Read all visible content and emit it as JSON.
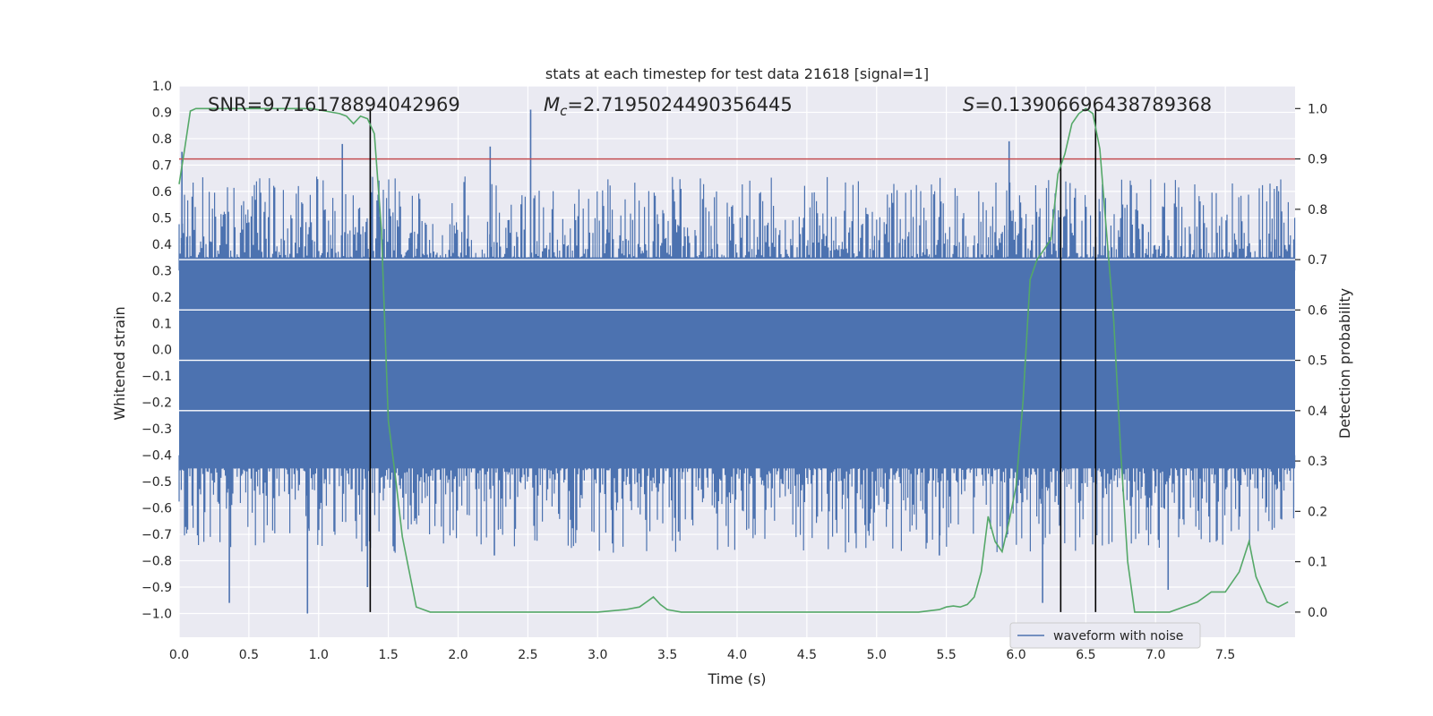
{
  "chart_data": {
    "type": "line",
    "title": "stats at each timestep for test data 21618 [signal=1]",
    "xlabel": "Time (s)",
    "ylabel": "Whitened strain",
    "ylabel_right": "Detection probability",
    "xlim": [
      0.0,
      8.0
    ],
    "ylim": [
      -1.09,
      1.0
    ],
    "ylim_right": [
      -0.05,
      1.045
    ],
    "x_ticks": [
      0.0,
      0.5,
      1.0,
      1.5,
      2.0,
      2.5,
      3.0,
      3.5,
      4.0,
      4.5,
      5.0,
      5.5,
      6.0,
      6.5,
      7.0,
      7.5
    ],
    "x_tick_labels": [
      "0.0",
      "0.5",
      "1.0",
      "1.5",
      "2.0",
      "2.5",
      "3.0",
      "3.5",
      "4.0",
      "4.5",
      "5.0",
      "5.5",
      "6.0",
      "6.5",
      "7.0",
      "7.5"
    ],
    "y_ticks": [
      -1.0,
      -0.9,
      -0.8,
      -0.7,
      -0.6,
      -0.5,
      -0.4,
      -0.3,
      -0.2,
      -0.1,
      0.0,
      0.1,
      0.2,
      0.3,
      0.4,
      0.5,
      0.6,
      0.7,
      0.8,
      0.9,
      1.0
    ],
    "y_tick_labels": [
      "−1.0",
      "−0.9",
      "−0.8",
      "−0.7",
      "−0.6",
      "−0.5",
      "−0.4",
      "−0.3",
      "−0.2",
      "−0.1",
      "0.0",
      "0.1",
      "0.2",
      "0.3",
      "0.4",
      "0.5",
      "0.6",
      "0.7",
      "0.8",
      "0.9",
      "1.0"
    ],
    "y_right_ticks": [
      0.0,
      0.1,
      0.2,
      0.3,
      0.4,
      0.5,
      0.6,
      0.7,
      0.8,
      0.9,
      1.0
    ],
    "y_right_tick_labels": [
      "0.0",
      "0.1",
      "0.2",
      "0.3",
      "0.4",
      "0.5",
      "0.6",
      "0.7",
      "0.8",
      "0.9",
      "1.0"
    ],
    "grid": true,
    "annotations": {
      "snr": "SNR=9.716178894042969",
      "mc_symbol": "M",
      "mc_sub": "c",
      "mc_value": "=2.7195024490356445",
      "s_symbol": "S",
      "s_value": "=0.13906696438789368"
    },
    "threshold_right": 0.9,
    "vertical_lines_x": [
      1.37,
      6.32,
      6.57
    ],
    "legend": {
      "label": "waveform with noise",
      "location": "lower-right"
    },
    "series": [
      {
        "name": "waveform with noise",
        "color": "#4c72b0",
        "style": "dense noise envelope",
        "core_band": [
          -0.45,
          0.35
        ],
        "spikes": [
          {
            "x": 0.02,
            "y": 0.75
          },
          {
            "x": 0.36,
            "y": -0.96
          },
          {
            "x": 0.92,
            "y": -1.0
          },
          {
            "x": 1.17,
            "y": 0.78
          },
          {
            "x": 1.35,
            "y": -0.9
          },
          {
            "x": 2.23,
            "y": 0.77
          },
          {
            "x": 2.26,
            "y": -0.78
          },
          {
            "x": 2.52,
            "y": 0.91
          },
          {
            "x": 3.58,
            "y": -0.69
          },
          {
            "x": 5.45,
            "y": -0.78
          },
          {
            "x": 5.95,
            "y": 0.79
          },
          {
            "x": 6.19,
            "y": -0.96
          },
          {
            "x": 7.09,
            "y": -0.91
          },
          {
            "x": 7.87,
            "y": 0.62
          }
        ]
      },
      {
        "name": "detection probability",
        "axis": "right",
        "color": "#55a868",
        "x": [
          0.0,
          0.04,
          0.08,
          0.12,
          0.2,
          0.3,
          0.45,
          0.6,
          0.8,
          0.95,
          1.05,
          1.15,
          1.2,
          1.25,
          1.3,
          1.35,
          1.4,
          1.45,
          1.5,
          1.55,
          1.6,
          1.65,
          1.7,
          1.8,
          1.9,
          2.1,
          2.5,
          3.0,
          3.2,
          3.3,
          3.35,
          3.4,
          3.45,
          3.5,
          3.6,
          3.7,
          3.8,
          4.0,
          4.5,
          5.0,
          5.3,
          5.45,
          5.5,
          5.55,
          5.6,
          5.65,
          5.7,
          5.75,
          5.8,
          5.85,
          5.9,
          5.95,
          6.0,
          6.05,
          6.1,
          6.15,
          6.2,
          6.25,
          6.3,
          6.35,
          6.4,
          6.45,
          6.5,
          6.55,
          6.6,
          6.65,
          6.7,
          6.75,
          6.8,
          6.85,
          6.9,
          7.0,
          7.1,
          7.2,
          7.3,
          7.4,
          7.5,
          7.6,
          7.67,
          7.72,
          7.8,
          7.88,
          7.95
        ],
        "y": [
          0.85,
          0.92,
          0.995,
          1.0,
          1.0,
          1.0,
          1.0,
          1.0,
          1.0,
          1.0,
          0.995,
          0.99,
          0.985,
          0.97,
          0.985,
          0.98,
          0.95,
          0.76,
          0.38,
          0.27,
          0.15,
          0.08,
          0.01,
          0.0,
          0.0,
          0.0,
          0.0,
          0.0,
          0.005,
          0.01,
          0.02,
          0.03,
          0.015,
          0.005,
          0.0,
          0.0,
          0.0,
          0.0,
          0.0,
          0.0,
          0.0,
          0.005,
          0.01,
          0.012,
          0.01,
          0.015,
          0.03,
          0.08,
          0.19,
          0.14,
          0.12,
          0.18,
          0.25,
          0.42,
          0.66,
          0.7,
          0.72,
          0.74,
          0.87,
          0.91,
          0.97,
          0.99,
          1.0,
          0.99,
          0.92,
          0.75,
          0.58,
          0.32,
          0.1,
          0.0,
          0.0,
          0.0,
          0.0,
          0.01,
          0.02,
          0.04,
          0.04,
          0.08,
          0.14,
          0.07,
          0.02,
          0.01,
          0.02
        ]
      }
    ]
  }
}
